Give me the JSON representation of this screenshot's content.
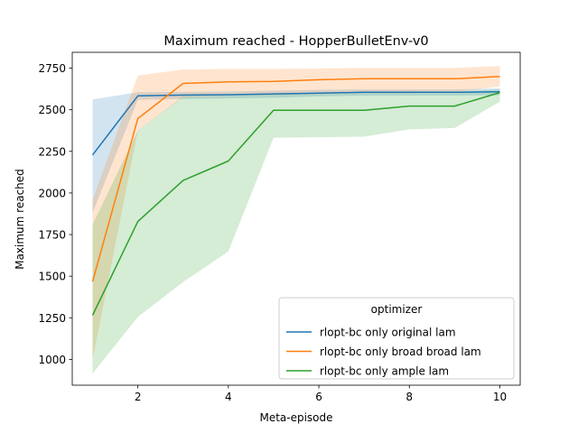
{
  "chart_data": {
    "type": "line",
    "title": "Maximum reached - HopperBulletEnv-v0",
    "xlabel": "Meta-episode",
    "ylabel": "Maximum reached",
    "xlim": [
      0.55,
      10.45
    ],
    "ylim": [
      845,
      2845
    ],
    "xticks": [
      2,
      4,
      6,
      8,
      10
    ],
    "yticks": [
      1000,
      1250,
      1500,
      1750,
      2000,
      2250,
      2500,
      2750
    ],
    "grid": false,
    "legend": {
      "title": "optimizer",
      "position": "lower-right"
    },
    "x": [
      1,
      2,
      3,
      4,
      5,
      6,
      7,
      8,
      9,
      10
    ],
    "series": [
      {
        "name": "rlopt-bc only original lam",
        "color": "#1f77b4",
        "values": [
          2228,
          2583,
          2588,
          2590,
          2595,
          2600,
          2605,
          2605,
          2605,
          2608
        ],
        "lower": [
          1880,
          2560,
          2565,
          2568,
          2572,
          2580,
          2585,
          2585,
          2585,
          2588
        ],
        "upper": [
          2562,
          2605,
          2608,
          2610,
          2615,
          2620,
          2622,
          2622,
          2622,
          2628
        ]
      },
      {
        "name": "rlopt-bc only broad broad lam",
        "color": "#ff7f0e",
        "values": [
          1468,
          2447,
          2658,
          2668,
          2670,
          2680,
          2686,
          2686,
          2686,
          2700
        ],
        "lower": [
          1000,
          2375,
          2575,
          2585,
          2588,
          2595,
          2600,
          2600,
          2605,
          2640
        ],
        "upper": [
          1960,
          2705,
          2742,
          2745,
          2745,
          2748,
          2752,
          2752,
          2752,
          2762
        ]
      },
      {
        "name": "rlopt-bc only ample lam",
        "color": "#2ca02c",
        "values": [
          1265,
          1828,
          2075,
          2192,
          2497,
          2497,
          2497,
          2522,
          2522,
          2603
        ],
        "lower": [
          915,
          1255,
          1465,
          1648,
          2332,
          2335,
          2338,
          2382,
          2390,
          2548
        ],
        "upper": [
          1810,
          2375,
          2580,
          2585,
          2592,
          2598,
          2602,
          2605,
          2608,
          2622
        ]
      }
    ]
  }
}
